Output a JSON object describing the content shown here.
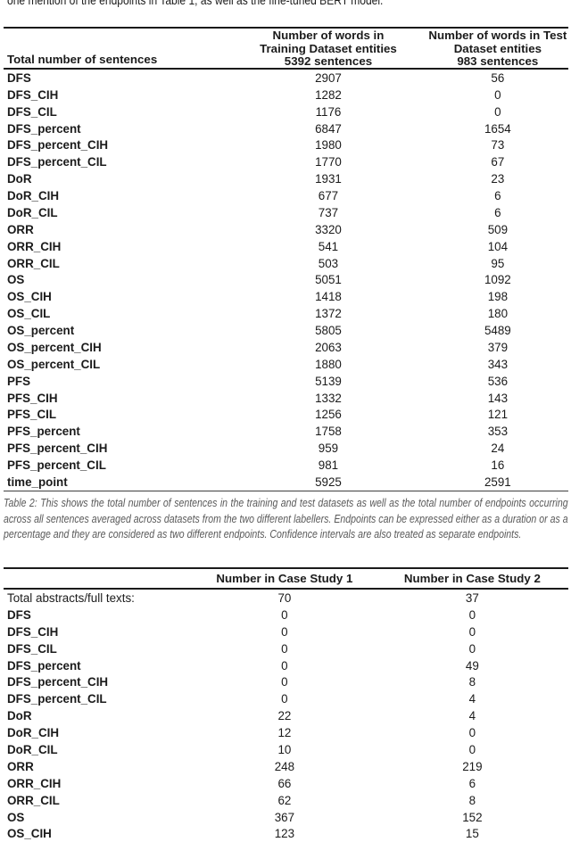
{
  "page": {
    "top_text": "one mention of the endpoints in Table 1, as well as the fine-tuned BERT model."
  },
  "table1": {
    "col1_header": "Total number of sentences",
    "col2_header": [
      "Number of words in",
      "Training Dataset entities",
      "5392 sentences"
    ],
    "col3_header": [
      "Number of words in Test",
      "Dataset entities",
      "983 sentences"
    ],
    "rows": [
      {
        "label": "DFS",
        "train": "2907",
        "test": "56"
      },
      {
        "label": "DFS_CIH",
        "train": "1282",
        "test": "0"
      },
      {
        "label": "DFS_CIL",
        "train": "1176",
        "test": "0"
      },
      {
        "label": "DFS_percent",
        "train": "6847",
        "test": "1654"
      },
      {
        "label": "DFS_percent_CIH",
        "train": "1980",
        "test": "73"
      },
      {
        "label": "DFS_percent_CIL",
        "train": "1770",
        "test": "67"
      },
      {
        "label": "DoR",
        "train": "1931",
        "test": "23"
      },
      {
        "label": "DoR_CIH",
        "train": "677",
        "test": "6"
      },
      {
        "label": "DoR_CIL",
        "train": "737",
        "test": "6"
      },
      {
        "label": "ORR",
        "train": "3320",
        "test": "509"
      },
      {
        "label": "ORR_CIH",
        "train": "541",
        "test": "104"
      },
      {
        "label": "ORR_CIL",
        "train": "503",
        "test": "95"
      },
      {
        "label": "OS",
        "train": "5051",
        "test": "1092"
      },
      {
        "label": "OS_CIH",
        "train": "1418",
        "test": "198"
      },
      {
        "label": "OS_CIL",
        "train": "1372",
        "test": "180"
      },
      {
        "label": "OS_percent",
        "train": "5805",
        "test": "5489"
      },
      {
        "label": "OS_percent_CIH",
        "train": "2063",
        "test": "379"
      },
      {
        "label": "OS_percent_CIL",
        "train": "1880",
        "test": "343"
      },
      {
        "label": "PFS",
        "train": "5139",
        "test": "536"
      },
      {
        "label": "PFS_CIH",
        "train": "1332",
        "test": "143"
      },
      {
        "label": "PFS_CIL",
        "train": "1256",
        "test": "121"
      },
      {
        "label": "PFS_percent",
        "train": "1758",
        "test": "353"
      },
      {
        "label": "PFS_percent_CIH",
        "train": "959",
        "test": "24"
      },
      {
        "label": "PFS_percent_CIL",
        "train": "981",
        "test": "16"
      },
      {
        "label": "time_point",
        "train": "5925",
        "test": "2591"
      }
    ],
    "caption": "Table 2: This shows the total number of sentences in the training and test datasets as well as the total number of endpoints occurring across all sentences averaged across datasets from the two different labellers. Endpoints can be expressed either as a duration or as a percentage and they are considered as two different endpoints. Confidence intervals are also treated as separate endpoints."
  },
  "table2": {
    "col2_header": "Number in Case Study 1",
    "col3_header": "Number in Case Study 2",
    "rows": [
      {
        "label": "Total abstracts/full texts:",
        "cs1": "70",
        "cs2": "37",
        "bold": false
      },
      {
        "label": "DFS",
        "cs1": "0",
        "cs2": "0"
      },
      {
        "label": "DFS_CIH",
        "cs1": "0",
        "cs2": "0"
      },
      {
        "label": "DFS_CIL",
        "cs1": "0",
        "cs2": "0"
      },
      {
        "label": "DFS_percent",
        "cs1": "0",
        "cs2": "49"
      },
      {
        "label": "DFS_percent_CIH",
        "cs1": "0",
        "cs2": "8"
      },
      {
        "label": "DFS_percent_CIL",
        "cs1": "0",
        "cs2": "4"
      },
      {
        "label": "DoR",
        "cs1": "22",
        "cs2": "4"
      },
      {
        "label": "DoR_CIH",
        "cs1": "12",
        "cs2": "0"
      },
      {
        "label": "DoR_CIL",
        "cs1": "10",
        "cs2": "0"
      },
      {
        "label": "ORR",
        "cs1": "248",
        "cs2": "219"
      },
      {
        "label": "ORR_CIH",
        "cs1": "66",
        "cs2": "6"
      },
      {
        "label": "ORR_CIL",
        "cs1": "62",
        "cs2": "8"
      },
      {
        "label": "OS",
        "cs1": "367",
        "cs2": "152"
      },
      {
        "label": "OS_CIH",
        "cs1": "123",
        "cs2": "15"
      }
    ]
  }
}
